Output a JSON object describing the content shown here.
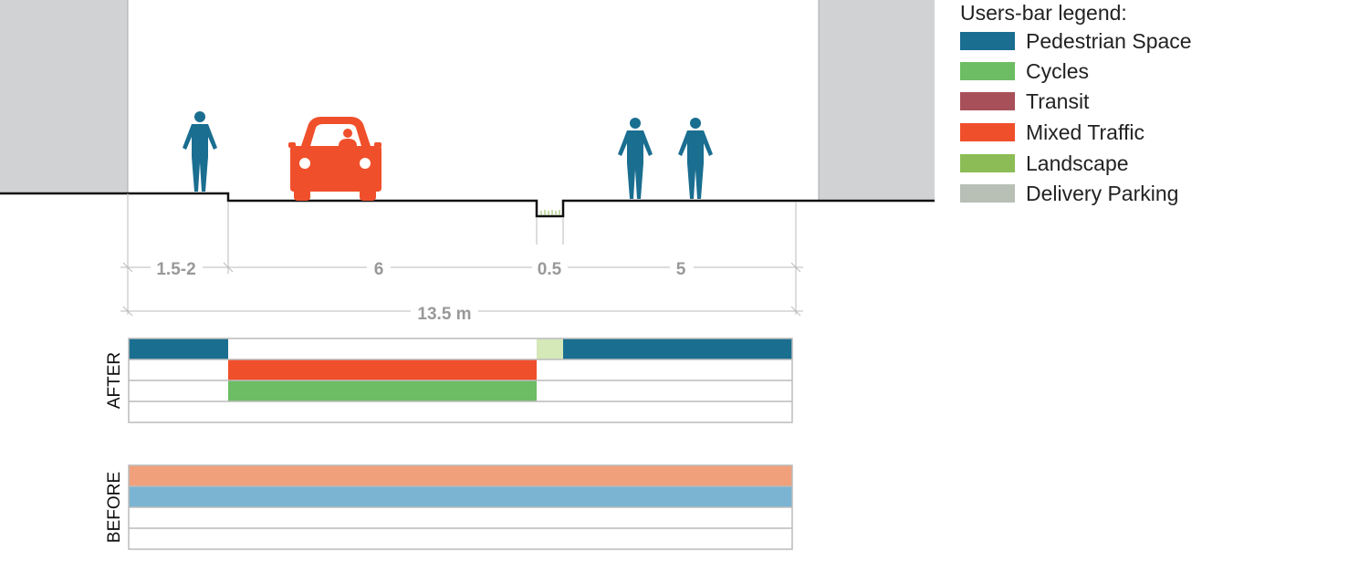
{
  "legend": {
    "title": "Users-bar legend:",
    "items": [
      {
        "label": "Pedestrian Space",
        "color": "#1a6e90"
      },
      {
        "label": "Cycles",
        "color": "#6cbd63"
      },
      {
        "label": "Transit",
        "color": "#a8505a"
      },
      {
        "label": "Mixed Traffic",
        "color": "#f04f2b"
      },
      {
        "label": "Landscape",
        "color": "#8cbc55"
      },
      {
        "label": "Delivery Parking",
        "color": "#b8bfb5"
      }
    ]
  },
  "section": {
    "segment_labels": [
      "1.5-2",
      "6",
      "0.5",
      "5"
    ],
    "total_label": "13.5 m"
  },
  "bars": {
    "after_label": "AFTER",
    "before_label": "BEFORE"
  },
  "colors": {
    "pedestrian": "#1a6e90",
    "mixed_traffic": "#f04f2b",
    "cycles": "#6cbd63",
    "landscape_light": "#d4e8b8",
    "before_traffic": "#f0a07a",
    "before_pedestrian": "#7ab4d2",
    "building": "#d1d2d4"
  }
}
